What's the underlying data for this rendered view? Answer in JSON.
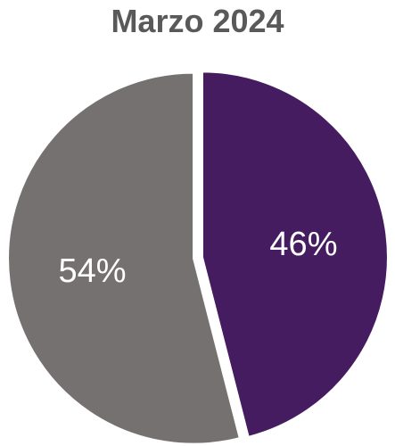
{
  "chart_data": {
    "type": "pie",
    "title": "Marzo 2024",
    "slices": [
      {
        "value": 46,
        "label": "46%",
        "color": "#461c60"
      },
      {
        "value": 54,
        "label": "54%",
        "color": "#757170"
      }
    ],
    "start_angle_deg": 0,
    "direction": "clockwise",
    "legend": "none"
  }
}
